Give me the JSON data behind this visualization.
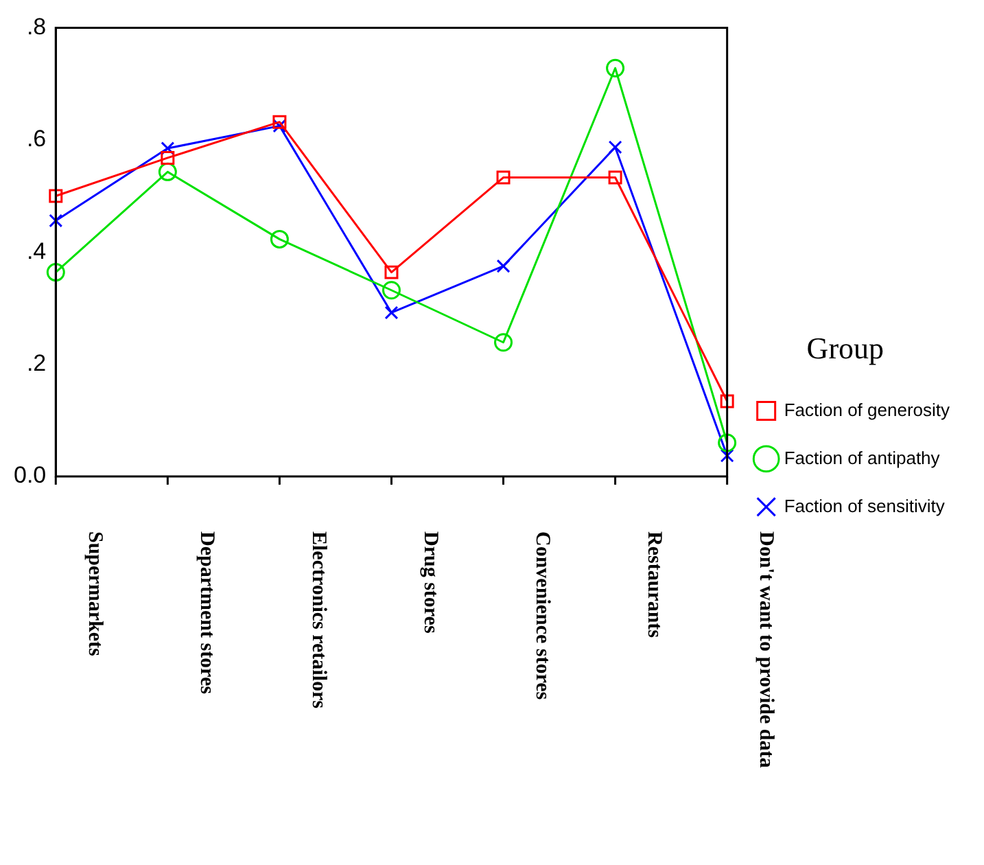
{
  "chart_data": {
    "type": "line",
    "categories": [
      "Supermarkets",
      "Department stores",
      "Electronics retailors",
      "Drug stores",
      "Convenience stores",
      "Restaurants",
      "Don't want to provide data"
    ],
    "series": [
      {
        "name": "Faction of generosity",
        "color": "#ff0000",
        "marker": "square",
        "values": [
          0.5,
          0.568,
          0.632,
          0.364,
          0.533,
          0.533,
          0.134
        ]
      },
      {
        "name": "Faction of antipathy",
        "color": "#00e000",
        "marker": "circle",
        "values": [
          0.364,
          0.543,
          0.423,
          0.332,
          0.239,
          0.728,
          0.06
        ]
      },
      {
        "name": "Faction of sensitivity",
        "color": "#0000ff",
        "marker": "cross",
        "values": [
          0.456,
          0.585,
          0.625,
          0.292,
          0.375,
          0.587,
          0.037
        ]
      }
    ],
    "ylim": [
      0,
      0.8
    ],
    "yticks": [
      {
        "value": 0,
        "label": "0.0"
      },
      {
        "value": 0.2,
        "label": ".2"
      },
      {
        "value": 0.4,
        "label": ".4"
      },
      {
        "value": 0.6,
        "label": ".6"
      },
      {
        "value": 0.8,
        "label": ".8"
      }
    ],
    "grid": false,
    "legend": "right",
    "legend_title": "Group",
    "line_style": "solid"
  }
}
